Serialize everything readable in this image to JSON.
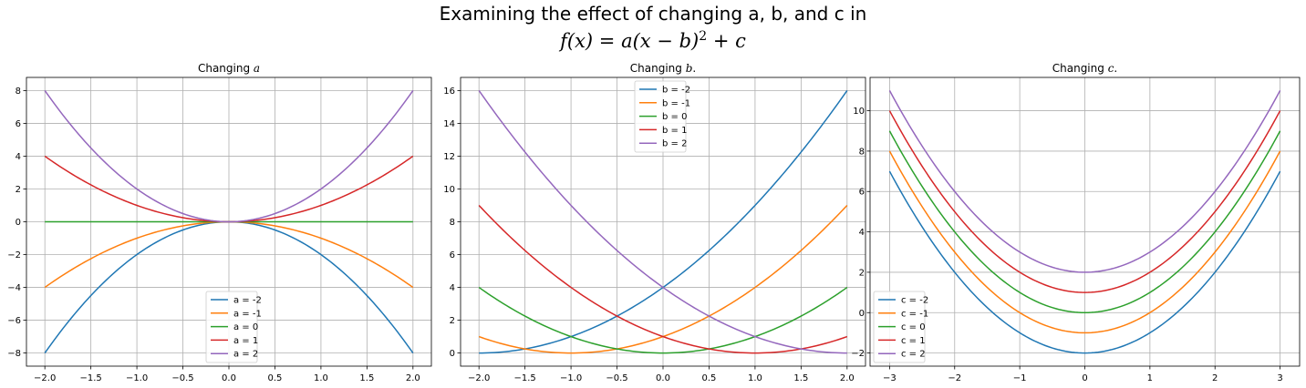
{
  "figure": {
    "title_line1": "Examining the effect of changing a, b, and c in",
    "title_formula": {
      "lhs": "f(x) = a(x − b)",
      "exp": "2",
      "rhs": " + c"
    }
  },
  "chart_data": [
    {
      "type": "line",
      "title": "Changing a",
      "title_prefix": "Changing ",
      "title_var": "a",
      "title_suffix": "",
      "xlabel": "",
      "ylabel": "",
      "xlim": [
        -2.2,
        2.2
      ],
      "ylim": [
        -8.8,
        8.8
      ],
      "xticks": [
        -2.0,
        -1.5,
        -1.0,
        -0.5,
        0.0,
        0.5,
        1.0,
        1.5,
        2.0
      ],
      "xtick_labels": [
        "−2.0",
        "−1.5",
        "−1.0",
        "−0.5",
        "0.0",
        "0.5",
        "1.0",
        "1.5",
        "2.0"
      ],
      "yticks": [
        -8,
        -6,
        -4,
        -2,
        0,
        2,
        4,
        6,
        8
      ],
      "ytick_labels": [
        "−8",
        "−6",
        "−4",
        "−2",
        "0",
        "2",
        "4",
        "6",
        "8"
      ],
      "grid": true,
      "legend_placement": "lower center",
      "x_range": [
        -2,
        2
      ],
      "series": [
        {
          "name": "a = -2",
          "a": -2,
          "b": 0,
          "c": 0,
          "color": "#1f77b4"
        },
        {
          "name": "a = -1",
          "a": -1,
          "b": 0,
          "c": 0,
          "color": "#ff7f0e"
        },
        {
          "name": "a = 0",
          "a": 0,
          "b": 0,
          "c": 0,
          "color": "#2ca02c"
        },
        {
          "name": "a = 1",
          "a": 1,
          "b": 0,
          "c": 0,
          "color": "#d62728"
        },
        {
          "name": "a = 2",
          "a": 2,
          "b": 0,
          "c": 0,
          "color": "#9467bd"
        }
      ]
    },
    {
      "type": "line",
      "title": "Changing b.",
      "title_prefix": "Changing ",
      "title_var": "b",
      "title_suffix": ".",
      "xlabel": "",
      "ylabel": "",
      "xlim": [
        -2.2,
        2.2
      ],
      "ylim": [
        -0.8,
        16.8
      ],
      "xticks": [
        -2.0,
        -1.5,
        -1.0,
        -0.5,
        0.0,
        0.5,
        1.0,
        1.5,
        2.0
      ],
      "xtick_labels": [
        "−2.0",
        "−1.5",
        "−1.0",
        "−0.5",
        "0.0",
        "0.5",
        "1.0",
        "1.5",
        "2.0"
      ],
      "yticks": [
        0,
        2,
        4,
        6,
        8,
        10,
        12,
        14,
        16
      ],
      "ytick_labels": [
        "0",
        "2",
        "4",
        "6",
        "8",
        "10",
        "12",
        "14",
        "16"
      ],
      "grid": true,
      "legend_placement": "upper center",
      "x_range": [
        -2,
        2
      ],
      "series": [
        {
          "name": "b = -2",
          "a": 1,
          "b": -2,
          "c": 0,
          "color": "#1f77b4"
        },
        {
          "name": "b = -1",
          "a": 1,
          "b": -1,
          "c": 0,
          "color": "#ff7f0e"
        },
        {
          "name": "b = 0",
          "a": 1,
          "b": 0,
          "c": 0,
          "color": "#2ca02c"
        },
        {
          "name": "b = 1",
          "a": 1,
          "b": 1,
          "c": 0,
          "color": "#d62728"
        },
        {
          "name": "b = 2",
          "a": 1,
          "b": 2,
          "c": 0,
          "color": "#9467bd"
        }
      ]
    },
    {
      "type": "line",
      "title": "Changing c.",
      "title_prefix": "Changing ",
      "title_var": "c",
      "title_suffix": ".",
      "xlabel": "",
      "ylabel": "",
      "xlim": [
        -3.3,
        3.3
      ],
      "ylim": [
        -2.65,
        11.65
      ],
      "xticks": [
        -3,
        -2,
        -1,
        0,
        1,
        2,
        3
      ],
      "xtick_labels": [
        "−3",
        "−2",
        "−1",
        "0",
        "1",
        "2",
        "3"
      ],
      "yticks": [
        -2,
        0,
        2,
        4,
        6,
        8,
        10
      ],
      "ytick_labels": [
        "−2",
        "0",
        "2",
        "4",
        "6",
        "8",
        "10"
      ],
      "grid": true,
      "legend_placement": "lower left",
      "x_range": [
        -3,
        3
      ],
      "series": [
        {
          "name": "c = -2",
          "a": 1,
          "b": 0,
          "c": -2,
          "color": "#1f77b4"
        },
        {
          "name": "c = -1",
          "a": 1,
          "b": 0,
          "c": -1,
          "color": "#ff7f0e"
        },
        {
          "name": "c = 0",
          "a": 1,
          "b": 0,
          "c": 0,
          "color": "#2ca02c"
        },
        {
          "name": "c = 1",
          "a": 1,
          "b": 0,
          "c": 1,
          "color": "#d62728"
        },
        {
          "name": "c = 2",
          "a": 1,
          "b": 0,
          "c": 2,
          "color": "#9467bd"
        }
      ]
    }
  ]
}
